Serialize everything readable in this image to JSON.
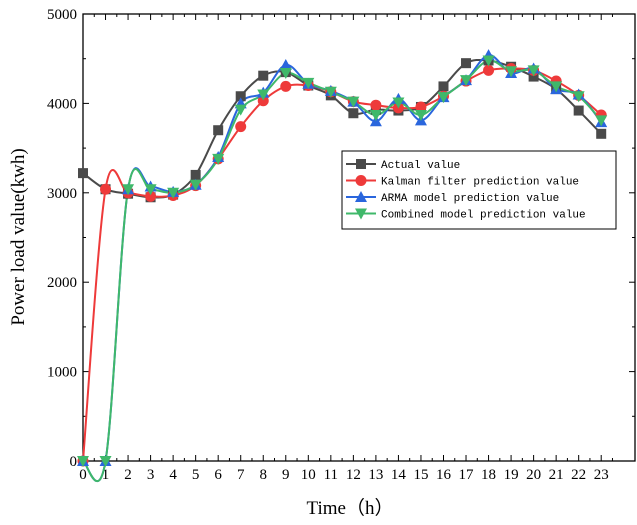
{
  "chart_data": {
    "type": "line",
    "title": "",
    "xlabel": "Time（h）",
    "ylabel": "Power load value(kwh)",
    "xlim": [
      0,
      24.5
    ],
    "ylim": [
      0,
      5000
    ],
    "x_ticks": [
      "0",
      "1",
      "2",
      "3",
      "4",
      "5",
      "6",
      "7",
      "8",
      "9",
      "10",
      "11",
      "12",
      "13",
      "14",
      "15",
      "16",
      "17",
      "18",
      "19",
      "20",
      "21",
      "22",
      "23"
    ],
    "y_ticks": [
      "0",
      "1000",
      "2000",
      "3000",
      "4000",
      "5000"
    ],
    "grid": false,
    "legend_position": "right",
    "x": [
      0,
      1,
      2,
      3,
      4,
      5,
      6,
      7,
      8,
      9,
      10,
      11,
      12,
      13,
      14,
      15,
      16,
      17,
      18,
      19,
      20,
      21,
      22,
      23
    ],
    "series": [
      {
        "name": "Actual value",
        "color": "#4a4a4a",
        "marker": "square",
        "values": [
          3220,
          3040,
          2990,
          2950,
          2980,
          3200,
          3700,
          4080,
          4310,
          4350,
          4200,
          4090,
          3890,
          3930,
          3920,
          3960,
          4190,
          4450,
          4480,
          4410,
          4300,
          4160,
          3920,
          3660
        ]
      },
      {
        "name": "Kalman filter prediction value",
        "color": "#ee3a3a",
        "marker": "circle",
        "values": [
          0,
          3040,
          3000,
          2960,
          2970,
          3080,
          3380,
          3740,
          4030,
          4190,
          4200,
          4130,
          4020,
          3980,
          3950,
          3960,
          4080,
          4250,
          4370,
          4390,
          4370,
          4250,
          4090,
          3870
        ]
      },
      {
        "name": "ARMA model prediction value",
        "color": "#2a66dd",
        "marker": "triangle-up",
        "values": [
          0,
          0,
          3040,
          3070,
          3010,
          3090,
          3400,
          4000,
          4120,
          4430,
          4220,
          4140,
          4020,
          3800,
          4050,
          3810,
          4070,
          4260,
          4540,
          4340,
          4390,
          4160,
          4100,
          3790
        ]
      },
      {
        "name": "Combined model prediction value",
        "color": "#3fb86a",
        "marker": "triangle-down",
        "values": [
          0,
          0,
          3040,
          3040,
          3000,
          3090,
          3380,
          3930,
          4100,
          4340,
          4230,
          4130,
          4020,
          3870,
          4010,
          3870,
          4070,
          4260,
          4480,
          4360,
          4370,
          4190,
          4080,
          3810
        ]
      }
    ]
  }
}
